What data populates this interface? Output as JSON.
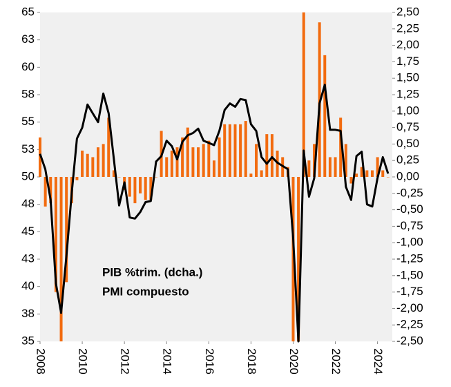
{
  "chart_data": {
    "type": "bar-line",
    "x": [
      2008,
      2008.25,
      2008.5,
      2008.75,
      2009,
      2009.25,
      2009.5,
      2009.75,
      2010,
      2010.25,
      2010.5,
      2010.75,
      2011,
      2011.25,
      2011.5,
      2011.75,
      2012,
      2012.25,
      2012.5,
      2012.75,
      2013,
      2013.25,
      2013.5,
      2013.75,
      2014,
      2014.25,
      2014.5,
      2014.75,
      2015,
      2015.25,
      2015.5,
      2015.75,
      2016,
      2016.25,
      2016.5,
      2016.75,
      2017,
      2017.25,
      2017.5,
      2017.75,
      2018,
      2018.25,
      2018.5,
      2018.75,
      2019,
      2019.25,
      2019.5,
      2019.75,
      2020,
      2020.25,
      2020.5,
      2020.75,
      2021,
      2021.25,
      2021.5,
      2021.75,
      2022,
      2022.25,
      2022.5,
      2022.75,
      2023,
      2023.25,
      2023.5,
      2023.75,
      2024,
      2024.25,
      2024.5
    ],
    "series": [
      {
        "name": "PIB %trim. (dcha.)",
        "color": "#f26b0f",
        "axis": "y2",
        "kind": "bar",
        "values": [
          0.6,
          -0.45,
          -0.4,
          -1.75,
          -2.5,
          -1.6,
          -0.4,
          -0.05,
          0.4,
          0.35,
          0.3,
          0.45,
          0.5,
          0.9,
          0.1,
          0.0,
          -0.2,
          -0.3,
          -0.4,
          -0.25,
          -0.35,
          -0.35,
          0.0,
          0.7,
          0.3,
          0.4,
          0.45,
          0.6,
          0.75,
          0.45,
          0.45,
          0.5,
          0.55,
          0.25,
          0.6,
          0.8,
          0.8,
          0.8,
          0.8,
          0.85,
          0.05,
          0.5,
          0.1,
          0.65,
          0.65,
          0.4,
          0.3,
          0.15,
          -2.5,
          -2.5,
          2.5,
          0.25,
          0.5,
          2.35,
          1.85,
          0.3,
          0.3,
          0.9,
          0.5,
          -0.1,
          0.05,
          0.15,
          0.1,
          0.1,
          0.3,
          0.1,
          0.0
        ]
      },
      {
        "name": "PMI compuesto",
        "color": "#000000",
        "kind": "line",
        "values": [
          52.1,
          50.7,
          47.9,
          40.3,
          37.6,
          42.8,
          48.5,
          53.5,
          54.5,
          56.6,
          55.8,
          55.0,
          57.6,
          55.8,
          51.6,
          47.4,
          49.5,
          46.3,
          46.2,
          46.8,
          47.7,
          47.8,
          51.4,
          51.9,
          53.3,
          52.8,
          51.6,
          53.2,
          53.8,
          54.0,
          54.4,
          53.3,
          53.1,
          52.9,
          54.2,
          56.1,
          56.7,
          56.4,
          57.1,
          57.0,
          54.8,
          54.2,
          51.8,
          51.2,
          51.8,
          51.3,
          51.0,
          50.7,
          44.4,
          35.0,
          52.4,
          48.2,
          49.9,
          56.7,
          58.4,
          54.3,
          54.3,
          54.2,
          49.1,
          47.9,
          51.9,
          52.3,
          47.5,
          47.3,
          49.9,
          51.8,
          50.3
        ]
      }
    ],
    "xlim": [
      2008,
      2024.7
    ],
    "xticks": [
      2008,
      2010,
      2012,
      2014,
      2016,
      2018,
      2020,
      2022,
      2024
    ],
    "ylim": [
      35,
      65
    ],
    "yticks": [
      35,
      {
        "value": 37.5,
        "label": "38"
      },
      40,
      {
        "value": 42.5,
        "label": "43"
      },
      45,
      {
        "value": 47.5,
        "label": "48"
      },
      50,
      {
        "value": 52.5,
        "label": "53"
      },
      55,
      {
        "value": 57.5,
        "label": "58"
      },
      60,
      {
        "value": 62.5,
        "label": "63"
      },
      65
    ],
    "y2lim": [
      -2.5,
      2.5
    ],
    "y2ticks": [
      {
        "value": -2.5,
        "label": "-2,50"
      },
      {
        "value": -2.25,
        "label": "-2,25"
      },
      {
        "value": -2,
        "label": "-2,00"
      },
      {
        "value": -1.75,
        "label": "-1,75"
      },
      {
        "value": -1.5,
        "label": "-1,50"
      },
      {
        "value": -1.25,
        "label": "-1,25"
      },
      {
        "value": -1,
        "label": "-1,00"
      },
      {
        "value": -0.75,
        "label": "-0,75"
      },
      {
        "value": -0.5,
        "label": "-0,50"
      },
      {
        "value": -0.25,
        "label": "-0,25"
      },
      {
        "value": 0,
        "label": "0,00"
      },
      {
        "value": 0.25,
        "label": "0,25"
      },
      {
        "value": 0.5,
        "label": "0,50"
      },
      {
        "value": 0.75,
        "label": "0,75"
      },
      {
        "value": 1,
        "label": "1,00"
      },
      {
        "value": 1.25,
        "label": "1,25"
      },
      {
        "value": 1.5,
        "label": "1,50"
      },
      {
        "value": 1.75,
        "label": "1,75"
      },
      {
        "value": 2,
        "label": "2,00"
      },
      {
        "value": 2.25,
        "label": "2,25"
      },
      {
        "value": 2.5,
        "label": "2,50"
      }
    ]
  }
}
